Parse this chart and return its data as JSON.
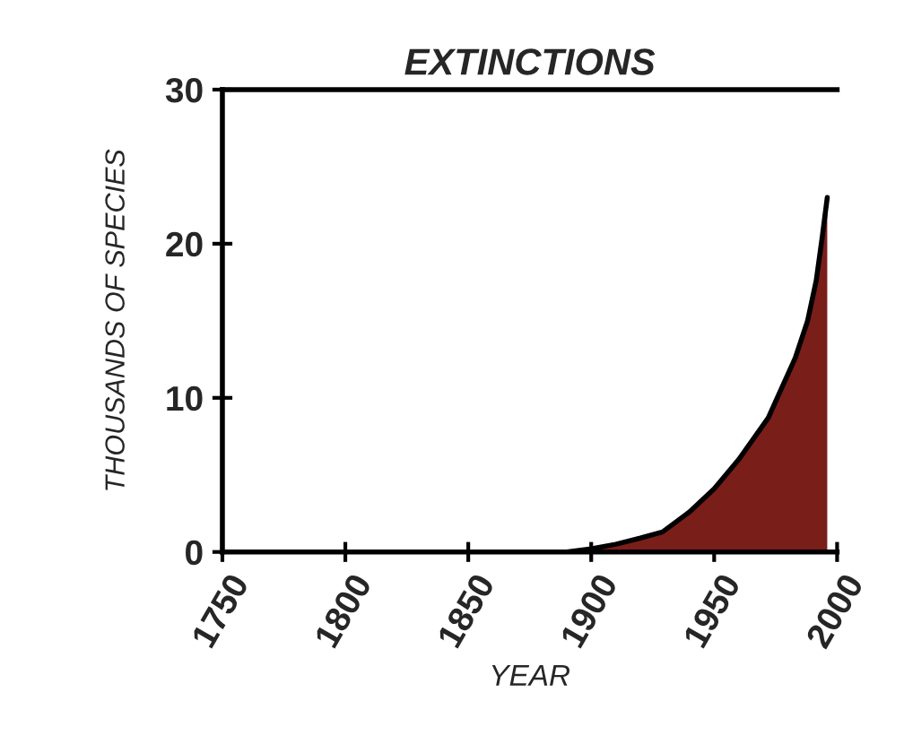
{
  "chart_data": {
    "type": "area",
    "title": "EXTINCTIONS",
    "xlabel": "YEAR",
    "ylabel": "THOUSANDS OF SPECIES",
    "x": [
      1750,
      1890,
      1900,
      1910,
      1920,
      1929,
      1940,
      1950,
      1960,
      1972,
      1983,
      1988,
      1991.5,
      1994,
      1996
    ],
    "series": [
      {
        "color": "#7a1e1a",
        "values": [
          0,
          0,
          0.2,
          0.5,
          0.9,
          1.3,
          2.6,
          4.1,
          6.0,
          8.7,
          12.6,
          15,
          17.6,
          20.5,
          23
        ]
      }
    ],
    "xlim": [
      1750,
      2000
    ],
    "xticks": [
      1750,
      1800,
      1850,
      1900,
      1950,
      2000
    ],
    "ylim": [
      0,
      30
    ],
    "yticks": [
      0,
      10,
      20,
      30
    ],
    "grid": false,
    "legend": false
  }
}
